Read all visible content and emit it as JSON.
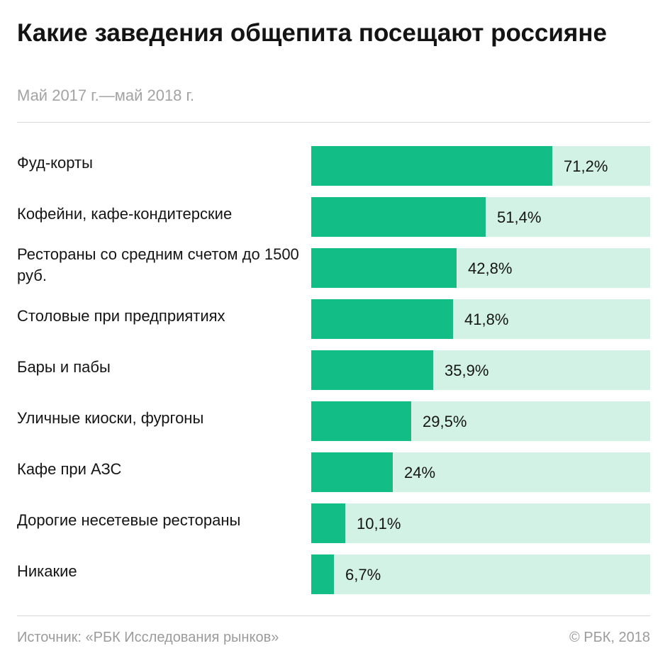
{
  "header": {
    "title": "Какие заведения общепита посещают россияне",
    "subtitle": "Май 2017 г.—май 2018 г."
  },
  "footer": {
    "source": "Источник: «РБК Исследования рынков»",
    "copyright": "© РБК, 2018"
  },
  "colors": {
    "bar": "#12bd86",
    "track": "#d3f2e6",
    "subtle_text": "#a3a3a3"
  },
  "chart_data": {
    "type": "bar",
    "orientation": "horizontal",
    "title": "Какие заведения общепита посещают россияне",
    "subtitle": "Май 2017 г.—май 2018 г.",
    "xlim": [
      0,
      100
    ],
    "unit": "%",
    "categories": [
      "Фуд-корты",
      "Кофейни, кафе-кондитерские",
      "Рестораны со средним счетом до 1500 руб.",
      "Столовые при предприятиях",
      "Бары и пабы",
      "Уличные киоски, фургоны",
      "Кафе при АЗС",
      "Дорогие несетевые рестораны",
      "Никакие"
    ],
    "values": [
      71.2,
      51.4,
      42.8,
      41.8,
      35.9,
      29.5,
      24,
      10.1,
      6.7
    ],
    "value_labels": [
      "71,2%",
      "51,4%",
      "42,8%",
      "41,8%",
      "35,9%",
      "29,5%",
      "24%",
      "10,1%",
      "6,7%"
    ]
  }
}
